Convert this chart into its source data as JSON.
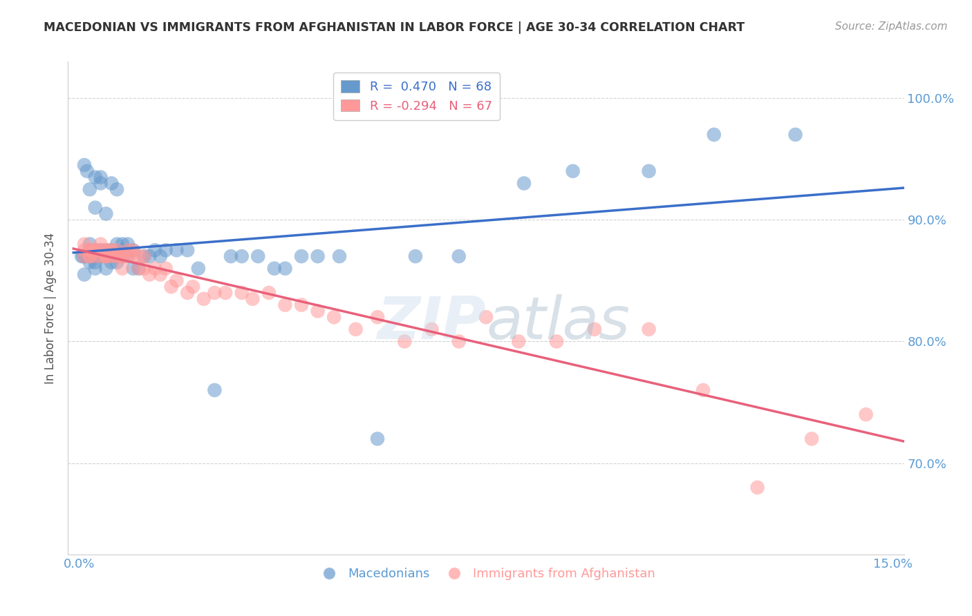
{
  "title": "MACEDONIAN VS IMMIGRANTS FROM AFGHANISTAN IN LABOR FORCE | AGE 30-34 CORRELATION CHART",
  "source": "Source: ZipAtlas.com",
  "ylabel": "In Labor Force | Age 30-34",
  "xlim": [
    -0.002,
    0.152
  ],
  "ylim": [
    0.625,
    1.03
  ],
  "x_ticks": [
    0.0,
    0.15
  ],
  "x_tick_labels": [
    "0.0%",
    "15.0%"
  ],
  "y_ticks": [
    0.7,
    0.8,
    0.9,
    1.0
  ],
  "y_tick_labels": [
    "70.0%",
    "80.0%",
    "90.0%",
    "100.0%"
  ],
  "macedonian_R": 0.47,
  "macedonian_N": 68,
  "afghan_R": -0.294,
  "afghan_N": 67,
  "blue_color": "#6699CC",
  "pink_color": "#FF9999",
  "blue_line_color": "#3B6FC9",
  "pink_line_color": "#E8607A",
  "macedonian_x": [
    0.0005,
    0.0008,
    0.001,
    0.001,
    0.0012,
    0.0015,
    0.002,
    0.002,
    0.002,
    0.002,
    0.002,
    0.003,
    0.003,
    0.003,
    0.003,
    0.003,
    0.003,
    0.004,
    0.004,
    0.004,
    0.004,
    0.004,
    0.005,
    0.005,
    0.005,
    0.005,
    0.005,
    0.006,
    0.006,
    0.006,
    0.006,
    0.007,
    0.007,
    0.007,
    0.007,
    0.008,
    0.008,
    0.008,
    0.009,
    0.009,
    0.01,
    0.01,
    0.011,
    0.012,
    0.013,
    0.014,
    0.015,
    0.016,
    0.018,
    0.02,
    0.022,
    0.025,
    0.028,
    0.03,
    0.033,
    0.036,
    0.038,
    0.041,
    0.044,
    0.048,
    0.055,
    0.062,
    0.07,
    0.082,
    0.091,
    0.105,
    0.117,
    0.132
  ],
  "macedonian_y": [
    0.87,
    0.87,
    0.855,
    0.945,
    0.87,
    0.94,
    0.88,
    0.875,
    0.87,
    0.865,
    0.925,
    0.87,
    0.87,
    0.865,
    0.86,
    0.91,
    0.935,
    0.87,
    0.87,
    0.875,
    0.93,
    0.935,
    0.875,
    0.87,
    0.86,
    0.87,
    0.905,
    0.865,
    0.875,
    0.87,
    0.93,
    0.865,
    0.88,
    0.87,
    0.925,
    0.875,
    0.87,
    0.88,
    0.87,
    0.88,
    0.86,
    0.875,
    0.86,
    0.87,
    0.87,
    0.875,
    0.87,
    0.875,
    0.875,
    0.875,
    0.86,
    0.76,
    0.87,
    0.87,
    0.87,
    0.86,
    0.86,
    0.87,
    0.87,
    0.87,
    0.72,
    0.87,
    0.87,
    0.93,
    0.94,
    0.94,
    0.97,
    0.97
  ],
  "afghan_x": [
    0.001,
    0.001,
    0.001,
    0.002,
    0.002,
    0.002,
    0.002,
    0.003,
    0.003,
    0.003,
    0.003,
    0.004,
    0.004,
    0.004,
    0.005,
    0.005,
    0.005,
    0.005,
    0.006,
    0.006,
    0.006,
    0.007,
    0.007,
    0.007,
    0.008,
    0.008,
    0.008,
    0.009,
    0.009,
    0.01,
    0.01,
    0.011,
    0.011,
    0.012,
    0.012,
    0.013,
    0.014,
    0.015,
    0.016,
    0.017,
    0.018,
    0.02,
    0.021,
    0.023,
    0.025,
    0.027,
    0.03,
    0.032,
    0.035,
    0.038,
    0.041,
    0.044,
    0.047,
    0.051,
    0.055,
    0.06,
    0.065,
    0.07,
    0.075,
    0.081,
    0.088,
    0.095,
    0.105,
    0.115,
    0.125,
    0.135,
    0.145
  ],
  "afghan_y": [
    0.87,
    0.875,
    0.88,
    0.875,
    0.87,
    0.87,
    0.875,
    0.875,
    0.875,
    0.87,
    0.875,
    0.87,
    0.875,
    0.88,
    0.87,
    0.87,
    0.875,
    0.87,
    0.875,
    0.87,
    0.875,
    0.875,
    0.87,
    0.87,
    0.87,
    0.87,
    0.86,
    0.875,
    0.87,
    0.87,
    0.875,
    0.87,
    0.86,
    0.86,
    0.87,
    0.855,
    0.86,
    0.855,
    0.86,
    0.845,
    0.85,
    0.84,
    0.845,
    0.835,
    0.84,
    0.84,
    0.84,
    0.835,
    0.84,
    0.83,
    0.83,
    0.825,
    0.82,
    0.81,
    0.82,
    0.8,
    0.81,
    0.8,
    0.82,
    0.8,
    0.8,
    0.81,
    0.81,
    0.76,
    0.68,
    0.72,
    0.74
  ]
}
